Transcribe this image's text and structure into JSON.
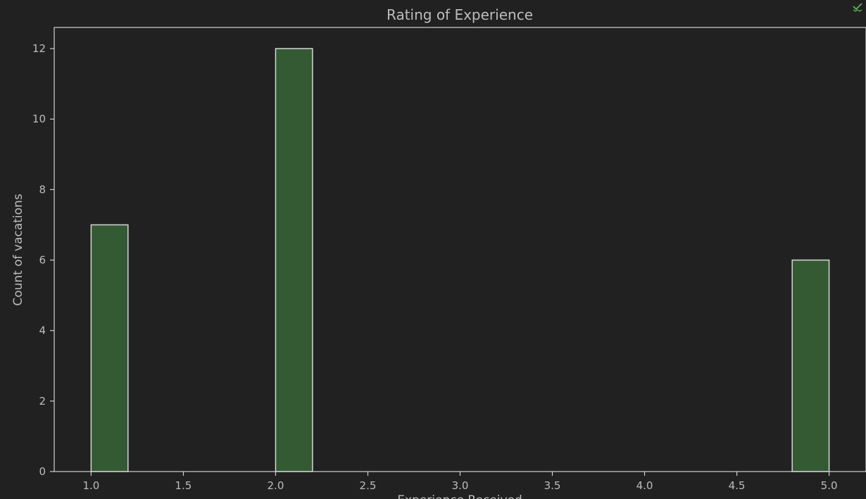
{
  "chart_data": {
    "type": "bar",
    "title": "Rating of Experience",
    "xlabel": "Experience Received",
    "ylabel": "Count of vacations",
    "xlim": [
      0.8,
      5.2
    ],
    "ylim": [
      0,
      12.6
    ],
    "xticks": [
      "1.0",
      "1.5",
      "2.0",
      "2.5",
      "3.0",
      "3.5",
      "4.0",
      "4.5",
      "5.0"
    ],
    "yticks": [
      "0",
      "2",
      "4",
      "6",
      "8",
      "10",
      "12"
    ],
    "grid": false,
    "bars": [
      {
        "x_start": 1.0,
        "x_end": 1.2,
        "value": 7
      },
      {
        "x_start": 2.0,
        "x_end": 2.2,
        "value": 12
      },
      {
        "x_start": 4.8,
        "x_end": 5.0,
        "value": 6
      }
    ],
    "colors": {
      "background": "#212121",
      "bar_fill": "#345a34",
      "bar_edge": "#d6d6d6",
      "axis": "#cfcfcf",
      "text": "#bdbdbd",
      "check": "#5cb85c"
    }
  },
  "status": {
    "icon": "check-icon"
  }
}
